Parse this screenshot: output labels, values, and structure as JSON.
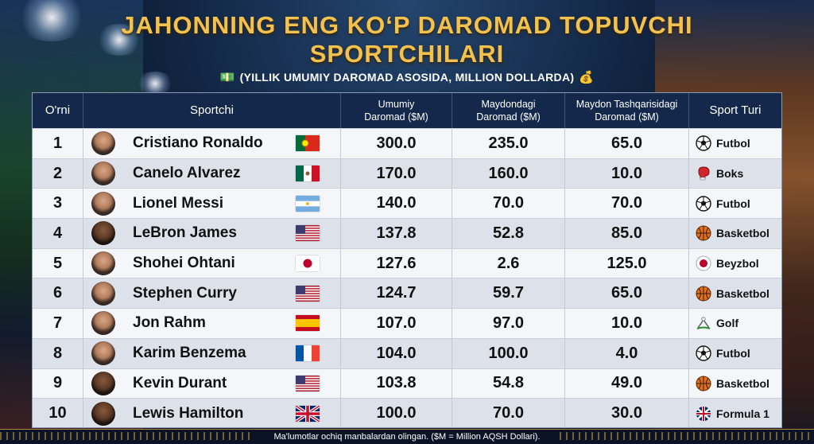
{
  "title_line1": "JAHONNING ENG KO‘P DAROMAD TOPUVCHI",
  "title_line2": "SPORTCHILARI",
  "subtitle": "(YILLIK UMUMIY DAROMAD ASOSIDA, MILLION DOLLARDA)",
  "subtitle_icons": [
    "money-stack-icon",
    "money-bag-icon"
  ],
  "footer": "Ma'lumotlar ochiq manbalardan olingan. ($M = Million AQSH Dollari).",
  "table": {
    "headers": {
      "rank": "O'rni",
      "athlete": "Sportchi",
      "total": "Umumiy Daromad ($M)",
      "on_field": "Maydondagi Daromad ($M)",
      "off_field": "Maydon Tashqarisidagi Daromad ($M)",
      "sport": "Sport Turi"
    },
    "rows": [
      {
        "rank": "1",
        "name": "Cristiano Ronaldo",
        "flag": "portugal",
        "total": "300.0",
        "on": "235.0",
        "off": "65.0",
        "sport": "Futbol",
        "sport_icon": "soccer-ball-icon"
      },
      {
        "rank": "2",
        "name": "Canelo Alvarez",
        "flag": "mexico",
        "total": "170.0",
        "on": "160.0",
        "off": "10.0",
        "sport": "Boks",
        "sport_icon": "boxing-glove-icon"
      },
      {
        "rank": "3",
        "name": "Lionel Messi",
        "flag": "argentina",
        "total": "140.0",
        "on": "70.0",
        "off": "70.0",
        "sport": "Futbol",
        "sport_icon": "soccer-ball-icon"
      },
      {
        "rank": "4",
        "name": "LeBron James",
        "flag": "usa",
        "total": "137.8",
        "on": "52.8",
        "off": "85.0",
        "sport": "Basketbol",
        "sport_icon": "basketball-icon"
      },
      {
        "rank": "5",
        "name": "Shohei Ohtani",
        "flag": "japan",
        "total": "127.6",
        "on": "2.6",
        "off": "125.0",
        "sport": "Beyzbol",
        "sport_icon": "baseball-icon"
      },
      {
        "rank": "6",
        "name": "Stephen Curry",
        "flag": "usa",
        "total": "124.7",
        "on": "59.7",
        "off": "65.0",
        "sport": "Basketbol",
        "sport_icon": "basketball-icon"
      },
      {
        "rank": "7",
        "name": "Jon Rahm",
        "flag": "spain",
        "total": "107.0",
        "on": "97.0",
        "off": "10.0",
        "sport": "Golf",
        "sport_icon": "golf-icon"
      },
      {
        "rank": "8",
        "name": "Karim Benzema",
        "flag": "france",
        "total": "104.0",
        "on": "100.0",
        "off": "4.0",
        "sport": "Futbol",
        "sport_icon": "soccer-ball-icon"
      },
      {
        "rank": "9",
        "name": "Kevin Durant",
        "flag": "usa",
        "total": "103.8",
        "on": "54.8",
        "off": "49.0",
        "sport": "Basketbol",
        "sport_icon": "basketball-icon"
      },
      {
        "rank": "10",
        "name": "Lewis Hamilton",
        "flag": "uk",
        "total": "100.0",
        "on": "70.0",
        "off": "30.0",
        "sport": "Formula 1",
        "sport_icon": "uk-flag-icon"
      }
    ]
  }
}
